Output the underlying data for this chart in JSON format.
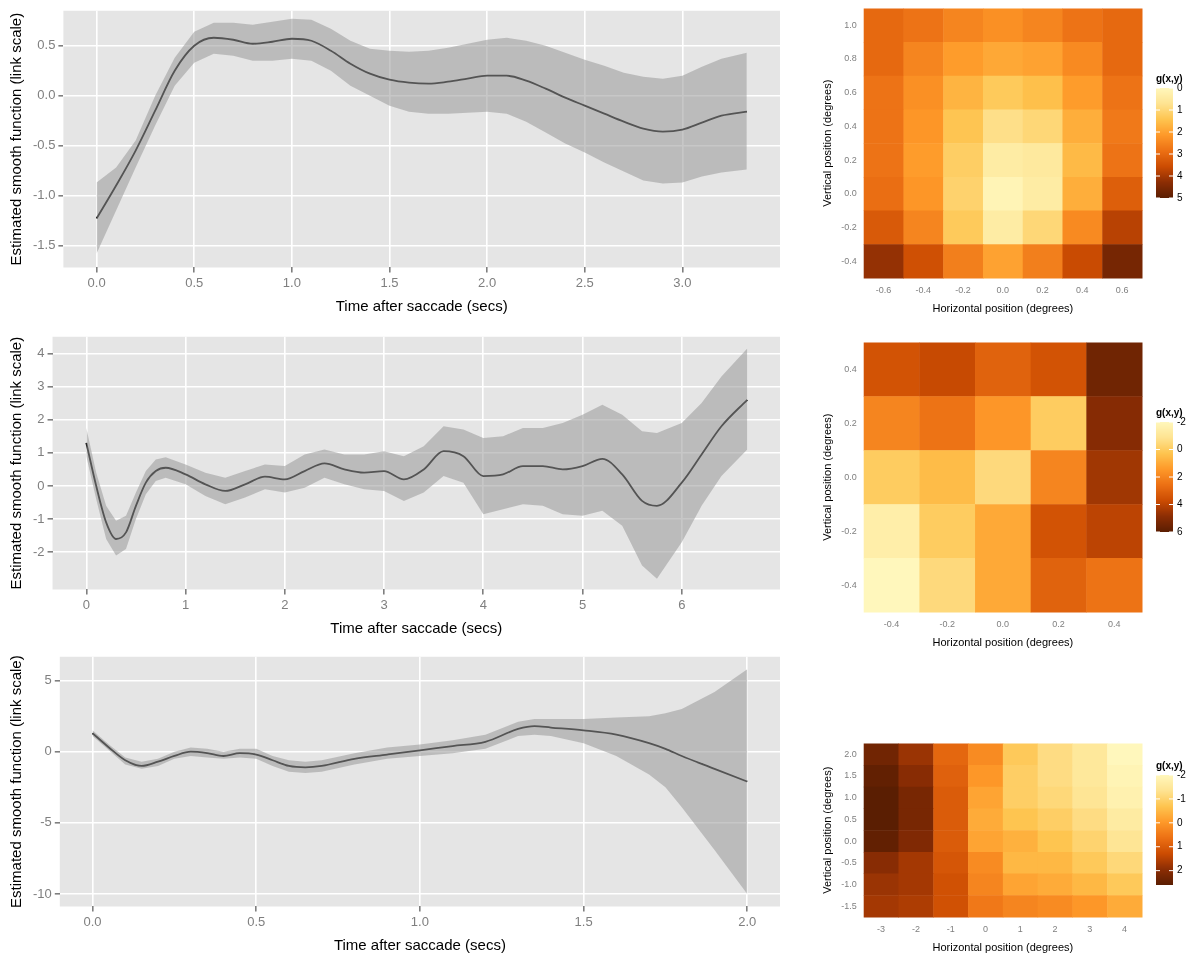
{
  "chart_data": [
    {
      "type": "line",
      "xlabel": "Time after saccade (secs)",
      "ylabel": "Estimated smooth function (link scale)",
      "xlim": [
        -0.17,
        3.5
      ],
      "ylim": [
        -1.72,
        0.85
      ],
      "xticks": [
        {
          "value": 0,
          "label": "0.0"
        },
        {
          "value": 0.5,
          "label": "0.5"
        },
        {
          "value": 1,
          "label": "1.0"
        },
        {
          "value": 1.5,
          "label": "1.5"
        },
        {
          "value": 2,
          "label": "2.0"
        },
        {
          "value": 2.5,
          "label": "2.5"
        },
        {
          "value": 3,
          "label": "3.0"
        }
      ],
      "yticks": [
        {
          "value": -1.5,
          "label": "-1.5"
        },
        {
          "value": -1,
          "label": "-1.0"
        },
        {
          "value": -0.5,
          "label": "-0.5"
        },
        {
          "value": 0,
          "label": "0.0"
        },
        {
          "value": 0.5,
          "label": "0.5"
        }
      ],
      "grid": true,
      "legend": false,
      "series": [
        {
          "color": "#000000",
          "x": [
            0,
            0.1,
            0.2,
            0.3,
            0.4,
            0.5,
            0.6,
            0.7,
            0.8,
            0.9,
            1.0,
            1.1,
            1.2,
            1.3,
            1.4,
            1.5,
            1.6,
            1.7,
            1.8,
            1.9,
            2.0,
            2.1,
            2.2,
            2.3,
            2.4,
            2.5,
            2.6,
            2.7,
            2.8,
            2.9,
            3.0,
            3.1,
            3.2,
            3.33
          ],
          "values": [
            -1.23,
            -0.9,
            -0.55,
            -0.15,
            0.25,
            0.5,
            0.58,
            0.56,
            0.52,
            0.54,
            0.57,
            0.55,
            0.45,
            0.32,
            0.22,
            0.16,
            0.13,
            0.12,
            0.14,
            0.17,
            0.2,
            0.2,
            0.15,
            0.07,
            -0.02,
            -0.1,
            -0.18,
            -0.26,
            -0.33,
            -0.36,
            -0.34,
            -0.27,
            -0.2,
            -0.16
          ],
          "lower": [
            -1.58,
            -1.15,
            -0.72,
            -0.3,
            0.1,
            0.33,
            0.42,
            0.4,
            0.35,
            0.35,
            0.37,
            0.35,
            0.25,
            0.1,
            0.0,
            -0.1,
            -0.16,
            -0.18,
            -0.18,
            -0.17,
            -0.16,
            -0.18,
            -0.26,
            -0.37,
            -0.48,
            -0.57,
            -0.67,
            -0.76,
            -0.85,
            -0.88,
            -0.87,
            -0.81,
            -0.77,
            -0.74
          ],
          "upper": [
            -0.87,
            -0.72,
            -0.45,
            0.0,
            0.38,
            0.64,
            0.73,
            0.73,
            0.71,
            0.74,
            0.77,
            0.76,
            0.67,
            0.55,
            0.47,
            0.45,
            0.44,
            0.45,
            0.48,
            0.52,
            0.56,
            0.58,
            0.55,
            0.5,
            0.43,
            0.36,
            0.3,
            0.23,
            0.19,
            0.17,
            0.2,
            0.29,
            0.37,
            0.43
          ]
        }
      ]
    },
    {
      "type": "heatmap",
      "xlabel": "Horizontal position (degrees)",
      "ylabel": "Vertical position (degrees)",
      "clabel": "g(x,y)",
      "clim": [
        0,
        5
      ],
      "cticks": [
        0,
        1,
        2,
        3,
        4,
        5
      ],
      "categories": [
        "-0.6",
        "-0.4",
        "-0.2",
        "0.0",
        "0.2",
        "0.4",
        "0.6"
      ],
      "y_categories": [
        "1.0",
        "0.8",
        "0.6",
        "0.4",
        "0.2",
        "0.0",
        "-0.2",
        "-0.4"
      ],
      "cells": [
        [
          3,
          2.8,
          2.5,
          2.3,
          2.5,
          2.8,
          3
        ],
        [
          3,
          2.5,
          2.1,
          1.9,
          2.0,
          2.4,
          3
        ],
        [
          2.8,
          2.3,
          1.7,
          1.3,
          1.5,
          2.1,
          2.8
        ],
        [
          2.8,
          2.2,
          1.4,
          0.8,
          1.0,
          1.8,
          2.7
        ],
        [
          2.8,
          2.1,
          1.2,
          0.4,
          0.5,
          1.6,
          2.8
        ],
        [
          2.9,
          2.2,
          1.1,
          0.1,
          0.4,
          1.8,
          3.2
        ],
        [
          3.3,
          2.5,
          1.3,
          0.4,
          1.0,
          2.4,
          3.8
        ],
        [
          4.2,
          3.5,
          2.6,
          2.0,
          2.6,
          3.6,
          4.6
        ]
      ]
    },
    {
      "type": "line",
      "xlabel": "Time after saccade (secs)",
      "ylabel": "Estimated smooth function (link scale)",
      "xlim": [
        -0.34,
        6.99
      ],
      "ylim": [
        -3.12,
        4.5
      ],
      "xticks": [
        0,
        1,
        2,
        3,
        4,
        5,
        6
      ],
      "yticks": [
        -2,
        -1,
        0,
        1,
        2,
        3,
        4
      ],
      "grid": true,
      "legend": false,
      "series": [
        {
          "color": "#000000",
          "x": [
            0,
            0.1,
            0.2,
            0.3,
            0.4,
            0.5,
            0.6,
            0.7,
            0.8,
            1.0,
            1.2,
            1.4,
            1.6,
            1.8,
            2.0,
            2.2,
            2.4,
            2.6,
            2.8,
            3.0,
            3.2,
            3.4,
            3.6,
            3.8,
            4.0,
            4.2,
            4.4,
            4.6,
            4.8,
            5.0,
            5.2,
            5.4,
            5.6,
            5.75,
            6.0,
            6.2,
            6.4,
            6.66
          ],
          "values": [
            1.3,
            0.0,
            -1.1,
            -1.6,
            -1.4,
            -0.6,
            0.1,
            0.45,
            0.55,
            0.35,
            0.05,
            -0.15,
            0.05,
            0.28,
            0.2,
            0.45,
            0.68,
            0.5,
            0.4,
            0.45,
            0.2,
            0.5,
            1.05,
            0.9,
            0.3,
            0.35,
            0.6,
            0.6,
            0.5,
            0.6,
            0.82,
            0.35,
            -0.45,
            -0.6,
            0.1,
            0.95,
            1.8,
            2.6
          ],
          "lower": [
            0.9,
            -0.4,
            -1.6,
            -2.1,
            -1.9,
            -1.0,
            -0.25,
            0.15,
            0.25,
            0.05,
            -0.3,
            -0.55,
            -0.35,
            -0.1,
            -0.2,
            -0.05,
            0.25,
            0.05,
            -0.1,
            -0.15,
            -0.45,
            -0.2,
            0.3,
            0.1,
            -0.85,
            -0.7,
            -0.55,
            -0.6,
            -0.85,
            -0.9,
            -0.75,
            -1.2,
            -2.4,
            -2.8,
            -1.7,
            -0.6,
            0.3,
            1.1
          ],
          "upper": [
            1.75,
            0.4,
            -0.6,
            -1.05,
            -0.9,
            -0.2,
            0.45,
            0.8,
            0.87,
            0.65,
            0.4,
            0.25,
            0.45,
            0.65,
            0.6,
            0.95,
            1.1,
            0.95,
            0.95,
            1.05,
            0.9,
            1.2,
            1.8,
            1.7,
            1.45,
            1.5,
            1.75,
            1.75,
            1.9,
            2.15,
            2.45,
            2.15,
            1.65,
            1.6,
            1.9,
            2.5,
            3.3,
            4.15
          ]
        }
      ]
    },
    {
      "type": "heatmap",
      "xlabel": "Horizontal position (degrees)",
      "ylabel": "Vertical position (degrees)",
      "clabel": "g(x,y)",
      "clim": [
        -2,
        6
      ],
      "cticks": [
        -2,
        0,
        2,
        4,
        6
      ],
      "categories": [
        "-0.4",
        "-0.2",
        "0.0",
        "0.2",
        "0.4"
      ],
      "y_categories": [
        "0.4",
        "0.2",
        "0.0",
        "-0.2",
        "-0.4"
      ],
      "cells": [
        [
          3.5,
          3.8,
          3.0,
          3.5,
          5.5
        ],
        [
          2.0,
          2.5,
          1.5,
          0.0,
          5.0
        ],
        [
          0.0,
          0.5,
          -0.5,
          2.0,
          4.5
        ],
        [
          -1.5,
          0.0,
          1.0,
          3.5,
          4.0
        ],
        [
          -2.0,
          -0.5,
          1.0,
          3.0,
          2.5
        ]
      ]
    },
    {
      "type": "line",
      "xlabel": "Time after saccade (secs)",
      "ylabel": "Estimated smooth function (link scale)",
      "xlim": [
        -0.1,
        2.1
      ],
      "ylim": [
        -10.87,
        6.67
      ],
      "xticks": [
        {
          "value": 0,
          "label": "0.0"
        },
        {
          "value": 0.5,
          "label": "0.5"
        },
        {
          "value": 1,
          "label": "1.0"
        },
        {
          "value": 1.5,
          "label": "1.5"
        },
        {
          "value": 2,
          "label": "2.0"
        }
      ],
      "yticks": [
        -10,
        -5,
        0,
        5
      ],
      "grid": true,
      "legend": false,
      "series": [
        {
          "color": "#000000",
          "x": [
            0,
            0.05,
            0.1,
            0.15,
            0.2,
            0.25,
            0.3,
            0.35,
            0.4,
            0.45,
            0.5,
            0.55,
            0.6,
            0.65,
            0.7,
            0.8,
            0.9,
            1.0,
            1.1,
            1.2,
            1.3,
            1.35,
            1.4,
            1.5,
            1.6,
            1.7,
            1.75,
            1.8,
            1.9,
            2.0
          ],
          "values": [
            1.3,
            0.3,
            -0.6,
            -1.0,
            -0.7,
            -0.3,
            0.0,
            -0.1,
            -0.3,
            -0.1,
            -0.2,
            -0.6,
            -1.0,
            -1.1,
            -1.0,
            -0.5,
            -0.2,
            0.1,
            0.4,
            0.7,
            1.6,
            1.8,
            1.7,
            1.5,
            1.2,
            0.6,
            0.2,
            -0.3,
            -1.2,
            -2.1
          ],
          "lower": [
            1.1,
            0.1,
            -0.9,
            -1.2,
            -1.0,
            -0.5,
            -0.3,
            -0.4,
            -0.5,
            -0.4,
            -0.5,
            -1.0,
            -1.4,
            -1.5,
            -1.4,
            -0.9,
            -0.5,
            -0.3,
            -0.1,
            0.2,
            1.1,
            1.2,
            1.1,
            0.6,
            -0.3,
            -1.6,
            -2.5,
            -3.9,
            -6.9,
            -10.0
          ],
          "upper": [
            1.5,
            0.5,
            -0.4,
            -0.7,
            -0.5,
            0.0,
            0.3,
            0.2,
            0.0,
            0.2,
            0.2,
            -0.3,
            -0.6,
            -0.7,
            -0.6,
            -0.1,
            0.3,
            0.5,
            0.8,
            1.2,
            2.1,
            2.3,
            2.3,
            2.3,
            2.4,
            2.5,
            2.7,
            3.0,
            4.2,
            5.8
          ]
        }
      ]
    },
    {
      "type": "heatmap",
      "xlabel": "Horizontal position (degrees)",
      "ylabel": "Vertical position (degrees)",
      "clabel": "g(x,y)",
      "clim": [
        -2,
        2.6
      ],
      "cticks": [
        -2,
        -1,
        0,
        1,
        2
      ],
      "categories": [
        "-3",
        "-2",
        "-1",
        "0",
        "1",
        "2",
        "3",
        "4"
      ],
      "y_categories": [
        "2.0",
        "1.5",
        "1.0",
        "0.5",
        "0.0",
        "-0.5",
        "-1.0",
        "-1.5"
      ],
      "cells": [
        [
          2.3,
          1.8,
          0.8,
          0.2,
          -0.8,
          -1.2,
          -1.5,
          -2.0
        ],
        [
          2.5,
          2.0,
          0.9,
          0.0,
          -0.9,
          -1.2,
          -1.5,
          -1.9
        ],
        [
          2.6,
          2.2,
          1.0,
          -0.2,
          -0.9,
          -1.1,
          -1.4,
          -1.8
        ],
        [
          2.6,
          2.2,
          1.0,
          -0.3,
          -0.7,
          -0.9,
          -1.2,
          -1.6
        ],
        [
          2.5,
          2.1,
          1.0,
          -0.2,
          -0.4,
          -0.7,
          -1.0,
          -1.4
        ],
        [
          2.0,
          1.7,
          1.1,
          0.2,
          -0.5,
          -0.5,
          -0.8,
          -1.1
        ],
        [
          1.8,
          1.7,
          1.2,
          0.3,
          -0.2,
          -0.3,
          -0.5,
          -0.8
        ],
        [
          1.7,
          1.6,
          1.2,
          0.5,
          0.3,
          0.2,
          0.0,
          -0.3
        ]
      ]
    }
  ]
}
